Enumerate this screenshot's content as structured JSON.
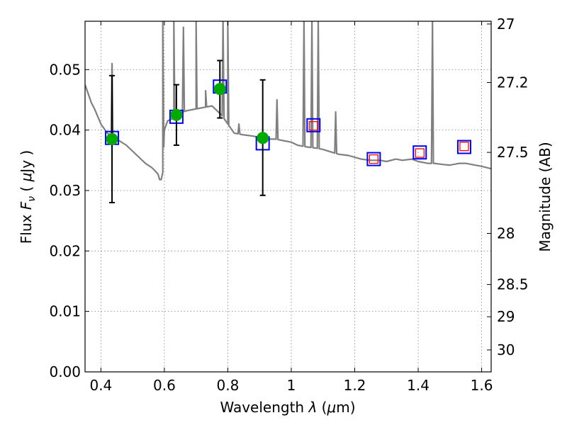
{
  "chart_data": {
    "type": "scatter",
    "xlabel": {
      "prefix": "Wavelength ",
      "symbol": "λ",
      "unit_open": " (",
      "unit_mu": "μ",
      "unit_rest": "m)"
    },
    "ylabel": {
      "prefix": "Flux ",
      "symbol": "F",
      "subscript": "ν",
      "unit_open": " ( ",
      "unit_mu": "μ",
      "unit_rest": "Jy )"
    },
    "ylabel_right": "Magnitude (AB)",
    "xlim": [
      0.35,
      1.63
    ],
    "ylim": [
      0.0,
      0.058
    ],
    "grid": true,
    "x_ticks": [
      {
        "v": 0.4,
        "label": "0.4"
      },
      {
        "v": 0.6,
        "label": "0.6"
      },
      {
        "v": 0.8,
        "label": "0.8"
      },
      {
        "v": 1.0,
        "label": "1"
      },
      {
        "v": 1.2,
        "label": "1.2"
      },
      {
        "v": 1.4,
        "label": "1.4"
      },
      {
        "v": 1.6,
        "label": "1.6"
      }
    ],
    "y_ticks": [
      {
        "v": 0.0,
        "label": "0.00"
      },
      {
        "v": 0.01,
        "label": "0.01"
      },
      {
        "v": 0.02,
        "label": "0.02"
      },
      {
        "v": 0.03,
        "label": "0.03"
      },
      {
        "v": 0.04,
        "label": "0.04"
      },
      {
        "v": 0.05,
        "label": "0.05"
      }
    ],
    "mag_ticks": [
      {
        "v": 27,
        "label": "27"
      },
      {
        "v": 27.2,
        "label": "27.2"
      },
      {
        "v": 27.5,
        "label": "27.5"
      },
      {
        "v": 28,
        "label": "28"
      },
      {
        "v": 28.5,
        "label": "28.5"
      },
      {
        "v": 29,
        "label": "29"
      },
      {
        "v": 30,
        "label": "30"
      }
    ],
    "model_spectrum": {
      "color": "#808080",
      "x": [
        0.35,
        0.36,
        0.37,
        0.38,
        0.4,
        0.42,
        0.45,
        0.48,
        0.5,
        0.52,
        0.54,
        0.56,
        0.57,
        0.58,
        0.585,
        0.59,
        0.595,
        0.6,
        0.61,
        0.63,
        0.65,
        0.67,
        0.7,
        0.73,
        0.75,
        0.78,
        0.8,
        0.82,
        0.85,
        0.88,
        0.9,
        0.93,
        0.95,
        0.98,
        1.0,
        1.02,
        1.05,
        1.08,
        1.1,
        1.13,
        1.15,
        1.18,
        1.2,
        1.22,
        1.25,
        1.28,
        1.3,
        1.33,
        1.35,
        1.38,
        1.4,
        1.43,
        1.45,
        1.48,
        1.5,
        1.53,
        1.55,
        1.57,
        1.6,
        1.63
      ],
      "y": [
        0.0475,
        0.046,
        0.0445,
        0.0435,
        0.041,
        0.0395,
        0.0385,
        0.0375,
        0.0365,
        0.0355,
        0.0345,
        0.0338,
        0.0333,
        0.0327,
        0.0318,
        0.0318,
        0.033,
        0.04,
        0.0415,
        0.042,
        0.0428,
        0.0432,
        0.0435,
        0.0438,
        0.044,
        0.0425,
        0.041,
        0.0395,
        0.0392,
        0.039,
        0.0388,
        0.0385,
        0.0385,
        0.0382,
        0.038,
        0.0375,
        0.0372,
        0.037,
        0.0368,
        0.0363,
        0.036,
        0.0358,
        0.0355,
        0.0352,
        0.035,
        0.035,
        0.0348,
        0.0352,
        0.035,
        0.0352,
        0.0348,
        0.0345,
        0.0345,
        0.0343,
        0.0342,
        0.0345,
        0.0345,
        0.0343,
        0.034,
        0.0336
      ],
      "emission_lines": [
        {
          "x": 0.435,
          "peak": 0.051
        },
        {
          "x": 0.595,
          "peak": 0.058
        },
        {
          "x": 0.63,
          "peak": 0.058
        },
        {
          "x": 0.66,
          "peak": 0.057
        },
        {
          "x": 0.7,
          "peak": 0.058
        },
        {
          "x": 0.73,
          "peak": 0.0465
        },
        {
          "x": 0.785,
          "peak": 0.058
        },
        {
          "x": 0.8,
          "peak": 0.058
        },
        {
          "x": 0.835,
          "peak": 0.041
        },
        {
          "x": 0.955,
          "peak": 0.045
        },
        {
          "x": 1.04,
          "peak": 0.058
        },
        {
          "x": 1.065,
          "peak": 0.058
        },
        {
          "x": 1.085,
          "peak": 0.058
        },
        {
          "x": 1.14,
          "peak": 0.043
        },
        {
          "x": 1.445,
          "peak": 0.058
        }
      ]
    },
    "observed_points": {
      "color": "#00aa00",
      "points": [
        {
          "x": 0.435,
          "y": 0.0385,
          "err_low": 0.028,
          "err_high": 0.049
        },
        {
          "x": 0.638,
          "y": 0.0425,
          "err_low": 0.0375,
          "err_high": 0.0475
        },
        {
          "x": 0.775,
          "y": 0.0468,
          "err_low": 0.042,
          "err_high": 0.0515
        },
        {
          "x": 0.91,
          "y": 0.0387,
          "err_low": 0.0292,
          "err_high": 0.0483
        }
      ]
    },
    "model_photometry": {
      "color": "#0000ff",
      "points": [
        {
          "x": 0.435,
          "y": 0.0387
        },
        {
          "x": 0.638,
          "y": 0.0422
        },
        {
          "x": 0.775,
          "y": 0.0472
        },
        {
          "x": 0.91,
          "y": 0.0378
        },
        {
          "x": 1.07,
          "y": 0.0408
        },
        {
          "x": 1.26,
          "y": 0.0352
        },
        {
          "x": 1.405,
          "y": 0.0363
        },
        {
          "x": 1.545,
          "y": 0.0372
        }
      ]
    },
    "predicted_points": {
      "color": "#ff0000",
      "points": [
        {
          "x": 1.07,
          "y": 0.0407
        },
        {
          "x": 1.26,
          "y": 0.0352
        },
        {
          "x": 1.405,
          "y": 0.0362
        },
        {
          "x": 1.545,
          "y": 0.0373
        }
      ]
    }
  }
}
